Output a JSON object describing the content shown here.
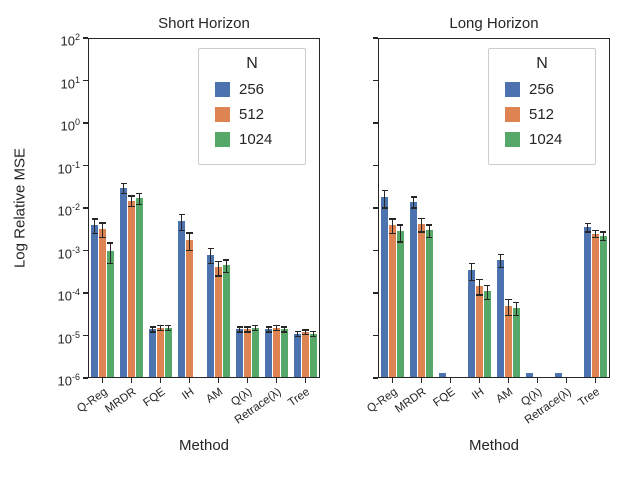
{
  "figure": {
    "ylabel": "Log Relative MSE",
    "background": "#ffffff",
    "text_color": "#262626"
  },
  "chart_data": [
    {
      "type": "bar",
      "title": "Short Horizon",
      "xlabel": "Method",
      "ylabel": "Log Relative MSE",
      "yscale": "log",
      "ylim": [
        1e-06,
        100.0
      ],
      "grid": false,
      "legend_title": "N",
      "legend_position": "upper right",
      "categories": [
        "Q-Reg",
        "MRDR",
        "FQE",
        "IH",
        "AM",
        "Q(λ)",
        "Retrace(λ)",
        "Tree"
      ],
      "series": [
        {
          "name": "256",
          "color": "#4C72B0",
          "values": [
            0.004,
            0.03,
            1.4e-05,
            0.005,
            0.0008,
            1.4e-05,
            1.4e-05,
            1.1e-05
          ],
          "errors": [
            0.0015,
            0.008,
            2e-06,
            0.002,
            0.0003,
            2e-06,
            2e-06,
            1.5e-06
          ]
        },
        {
          "name": "512",
          "color": "#DD8452",
          "values": [
            0.0032,
            0.015,
            1.5e-05,
            0.0018,
            0.0004,
            1.4e-05,
            1.5e-05,
            1.2e-05
          ],
          "errors": [
            0.0012,
            0.004,
            2e-06,
            0.0008,
            0.00015,
            2e-06,
            2e-06,
            1.5e-06
          ]
        },
        {
          "name": "1024",
          "color": "#55A868",
          "values": [
            0.001,
            0.017,
            1.5e-05,
            null,
            0.00045,
            1.5e-05,
            1.4e-05,
            1.1e-05
          ],
          "errors": [
            0.0005,
            0.005,
            2e-06,
            null,
            0.00015,
            2e-06,
            2e-06,
            1.5e-06
          ]
        }
      ]
    },
    {
      "type": "bar",
      "title": "Long Horizon",
      "xlabel": "Method",
      "ylabel": "Log Relative MSE",
      "yscale": "log",
      "ylim": [
        1e-06,
        100.0
      ],
      "grid": false,
      "legend_title": "N",
      "legend_position": "upper right",
      "categories": [
        "Q-Reg",
        "MRDR",
        "FQE",
        "IH",
        "AM",
        "Q(λ)",
        "Retrace(λ)",
        "Tree"
      ],
      "series": [
        {
          "name": "256",
          "color": "#4C72B0",
          "values": [
            0.018,
            0.014,
            1.3e-06,
            0.00035,
            0.0006,
            1.3e-06,
            1.3e-06,
            0.0035
          ],
          "errors": [
            0.008,
            0.004,
            0,
            0.00015,
            0.0002,
            0,
            0,
            0.0008
          ]
        },
        {
          "name": "512",
          "color": "#DD8452",
          "values": [
            0.004,
            0.0042,
            null,
            0.00015,
            5e-05,
            null,
            null,
            0.0025
          ],
          "errors": [
            0.0015,
            0.0015,
            null,
            6e-05,
            2e-05,
            null,
            null,
            0.0005
          ]
        },
        {
          "name": "1024",
          "color": "#55A868",
          "values": [
            0.0028,
            0.003,
            null,
            0.00011,
            4.5e-05,
            null,
            null,
            0.0022
          ],
          "errors": [
            0.0012,
            0.001,
            null,
            4e-05,
            1.5e-05,
            null,
            null,
            0.0005
          ]
        }
      ]
    }
  ]
}
